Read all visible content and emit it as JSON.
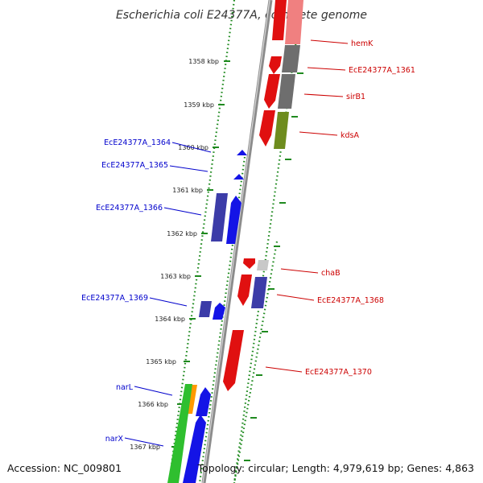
{
  "title": "Escherichia coli E24377A, complete genome",
  "footer": {
    "accession": "Accession: NC_009801",
    "topology": "Topology: circular; Length: 4,979,619 bp; Genes: 4,863"
  },
  "colors": {
    "background": "#ffffff",
    "backbone": "#8c8c8c",
    "ruler_ticks": "#1f8a1f",
    "label_forward": "#0000cc",
    "label_reverse": "#cc0000",
    "forward_dark": "#3c3ca8",
    "forward_blue": "#1414e6",
    "reverse_red": "#e01010",
    "pink": "#f08080",
    "gray": "#6e6e6e",
    "olive": "#6e8c1e",
    "light_gray": "#c8c8c8",
    "green": "#2fbf2f",
    "orange": "#ff9900"
  },
  "ruler": {
    "unit": "kbp",
    "ticks": [
      {
        "pos": 1358,
        "label": "1358 kbp"
      },
      {
        "pos": 1359,
        "label": "1359 kbp"
      },
      {
        "pos": 1360,
        "label": "1360 kbp"
      },
      {
        "pos": 1361,
        "label": "1361 kbp"
      },
      {
        "pos": 1362,
        "label": "1362 kbp"
      },
      {
        "pos": 1363,
        "label": "1363 kbp"
      },
      {
        "pos": 1364,
        "label": "1364 kbp"
      },
      {
        "pos": 1365,
        "label": "1365 kbp"
      },
      {
        "pos": 1366,
        "label": "1366 kbp"
      },
      {
        "pos": 1367,
        "label": "1367 kbp"
      }
    ]
  },
  "genes": [
    {
      "name": "hemK",
      "strand": "reverse",
      "color": "reverse_red"
    },
    {
      "name": "EcE24377A_1361",
      "strand": "reverse",
      "color": "reverse_red"
    },
    {
      "name": "sirB1",
      "strand": "reverse",
      "color": "reverse_red"
    },
    {
      "name": "kdsA",
      "strand": "reverse",
      "color": "reverse_red"
    },
    {
      "name": "EcE24377A_1364",
      "strand": "forward",
      "color": "forward_blue"
    },
    {
      "name": "EcE24377A_1365",
      "strand": "forward",
      "color": "forward_blue"
    },
    {
      "name": "EcE24377A_1366",
      "strand": "forward",
      "color": "forward_blue"
    },
    {
      "name": "chaB",
      "strand": "reverse",
      "color": "reverse_red"
    },
    {
      "name": "EcE24377A_1368",
      "strand": "reverse",
      "color": "reverse_red"
    },
    {
      "name": "EcE24377A_1369",
      "strand": "forward",
      "color": "forward_blue"
    },
    {
      "name": "EcE24377A_1370",
      "strand": "reverse",
      "color": "reverse_red"
    },
    {
      "name": "narL",
      "strand": "forward",
      "color": "forward_blue"
    },
    {
      "name": "narX",
      "strand": "forward",
      "color": "forward_blue"
    }
  ]
}
